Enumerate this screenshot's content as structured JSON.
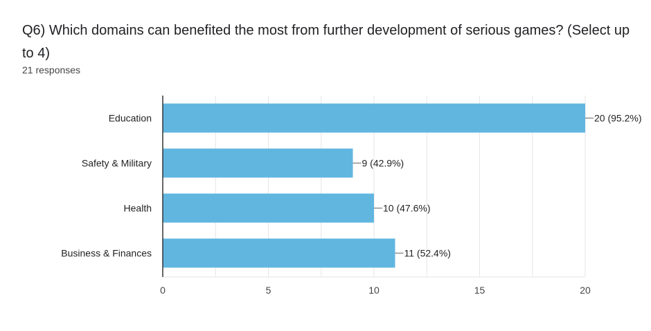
{
  "header": {
    "title": "Q6) Which domains can benefited the most from further development of serious games?   (Select up to 4)",
    "responses": "21 responses"
  },
  "colors": {
    "bar": "#61b6e0",
    "grid": "#e6e6e6",
    "axis": "#333333"
  },
  "chart_data": {
    "type": "bar",
    "orientation": "horizontal",
    "title": "Q6) Which domains can benefited the most from further development of serious games?   (Select up to 4)",
    "xlabel": "",
    "ylabel": "",
    "categories": [
      "Education",
      "Safety & Military",
      "Health",
      "Business & Finances"
    ],
    "values": [
      20,
      9,
      10,
      11
    ],
    "value_labels": [
      "20 (95.2%)",
      "9 (42.9%)",
      "10 (47.6%)",
      "11 (52.4%)"
    ],
    "xlim": [
      0,
      20
    ],
    "xticks": [
      0,
      5,
      10,
      15,
      20
    ],
    "grid": true
  }
}
